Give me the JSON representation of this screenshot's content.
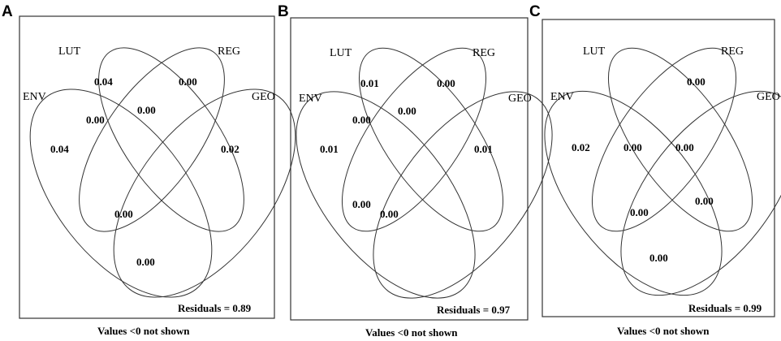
{
  "panels": [
    {
      "letter": "A",
      "sets": [
        "LUT",
        "REG",
        "ENV",
        "GEO"
      ],
      "values": {
        "lut_only": "0.04",
        "reg_only": "0.00",
        "env_only": "0.04",
        "geo_only": "0.02",
        "lut_reg": "0.00",
        "env_lut": "0.00",
        "env_reg": "0.00",
        "env_geo": "0.00"
      },
      "residuals": "Residuals = 0.89",
      "footnote": "Values <0 not shown"
    },
    {
      "letter": "B",
      "sets": [
        "LUT",
        "REG",
        "ENV",
        "GEO"
      ],
      "values": {
        "lut_only": "0.01",
        "reg_only": "0.00",
        "env_only": "0.01",
        "geo_only": "0.01",
        "lut_reg": "0.00",
        "env_lut": "0.00",
        "env_reg_geo": "0.00",
        "env_reg": "0.00"
      },
      "residuals": "Residuals = 0.97",
      "footnote": "Values <0 not shown"
    },
    {
      "letter": "C",
      "sets": [
        "LUT",
        "REG",
        "ENV",
        "GEO"
      ],
      "values": {
        "reg_only": "0.00",
        "env_only": "0.02",
        "env_lut": "0.00",
        "reg_geo": "0.00",
        "lut_geo": "0.00",
        "env_reg": "0.00",
        "env_geo": "0.00"
      },
      "residuals": "Residuals = 0.99",
      "footnote": "Values <0 not shown"
    }
  ]
}
